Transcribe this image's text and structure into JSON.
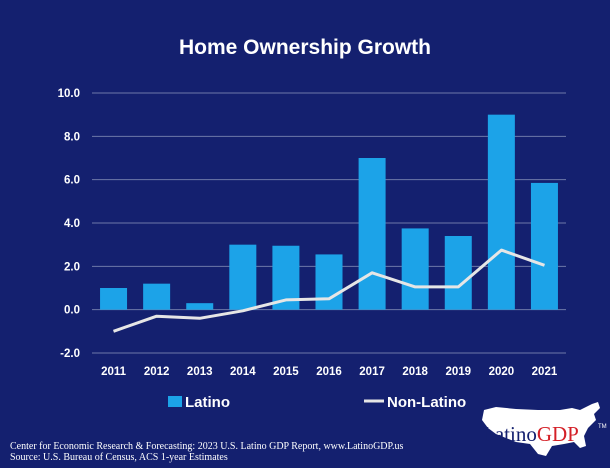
{
  "chart_data": {
    "type": "bar",
    "title": "Home Ownership Growth",
    "categories": [
      "2011",
      "2012",
      "2013",
      "2014",
      "2015",
      "2016",
      "2017",
      "2018",
      "2019",
      "2020",
      "2021"
    ],
    "series": [
      {
        "name": "Latino",
        "type": "bar",
        "color": "#1ca3e8",
        "values": [
          1.0,
          1.2,
          0.3,
          3.0,
          2.95,
          2.55,
          7.0,
          3.75,
          3.4,
          9.0,
          5.85
        ]
      },
      {
        "name": "Non-Latino",
        "type": "line",
        "color": "#e6e6e6",
        "values": [
          -1.0,
          -0.3,
          -0.4,
          -0.05,
          0.45,
          0.5,
          1.7,
          1.05,
          1.05,
          2.75,
          2.05
        ]
      }
    ],
    "yticks": [
      "10.0",
      "8.0",
      "6.0",
      "4.0",
      "2.0",
      "0.0",
      "-2.0"
    ],
    "ylim": [
      -2.0,
      10.0
    ],
    "grid": true,
    "legend_position": "bottom"
  },
  "footer": {
    "line1": "Center for Economic Research & Forecasting: 2023 U.S. Latino GDP Report, www.LatinoGDP.us",
    "line2": "Source: U.S. Bureau of Census, ACS 1-year Estimates"
  },
  "logo": {
    "part1": "Latino",
    "part2": "GDP",
    "tm": "TM"
  },
  "colors": {
    "background": "#14206f",
    "bar": "#1ca3e8",
    "line": "#e6e6e6",
    "logo_red": "#d42027"
  }
}
